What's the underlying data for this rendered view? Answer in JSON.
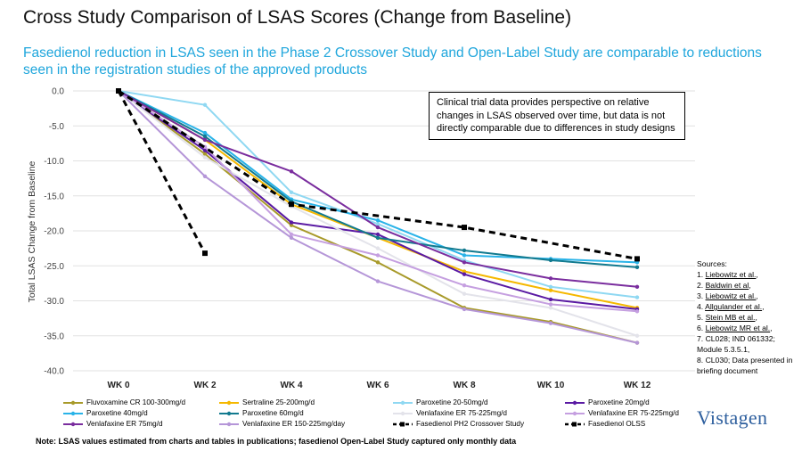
{
  "header": {
    "title": "Cross Study Comparison of LSAS Scores (Change from Baseline)",
    "subtitle": "Fasedienol reduction in LSAS seen in the Phase 2 Crossover Study and Open-Label Study are comparable to reductions seen in the registration studies of the approved products"
  },
  "callout": {
    "text": "Clinical trial data provides perspective on relative changes in LSAS observed over time, but data is not directly comparable due to differences in study designs"
  },
  "sources": {
    "heading": "Sources:",
    "items": [
      {
        "num": "1.",
        "text": "Liebowitz et al.",
        "suffix": ","
      },
      {
        "num": "2.",
        "text": "Baldwin et al",
        "suffix": ","
      },
      {
        "num": "3.",
        "text": "Liebowitz et al.",
        "suffix": ","
      },
      {
        "num": "4.",
        "text": "Allgulander et al.",
        "suffix": ","
      },
      {
        "num": "5.",
        "text": "Stein MB et al.",
        "suffix": ","
      },
      {
        "num": "6.",
        "text": "Liebowitz MR et al.",
        "suffix": ","
      },
      {
        "num": "7.",
        "text": "CL028;  IND 061332; Module 5.3.5.1,",
        "suffix": ""
      },
      {
        "num": "8.",
        "text": "CL030;  Data presented in briefing document",
        "suffix": ""
      }
    ]
  },
  "logo": "Vistagen",
  "note": "Note:  LSAS values estimated from charts and tables in publications; fasedienol Open-Label Study captured only monthly data",
  "chart_data": {
    "type": "line",
    "title": "",
    "xlabel": "",
    "ylabel": "Total LSAS Change from Baseline",
    "categories": [
      "WK 0",
      "WK 2",
      "WK 4",
      "WK 6",
      "WK 8",
      "WK 10",
      "WK 12"
    ],
    "ylim": [
      -40,
      0
    ],
    "yticks": [
      "0.0",
      "-5.0",
      "-10.0",
      "-15.0",
      "-20.0",
      "-25.0",
      "-30.0",
      "-35.0",
      "-40.0"
    ],
    "ytick_values": [
      0,
      -5,
      -10,
      -15,
      -20,
      -25,
      -30,
      -35,
      -40
    ],
    "series": [
      {
        "name": "Fluvoxamine CR 100-300mg/d",
        "color": "#a89a2a",
        "dash": false,
        "values": [
          0,
          -9.0,
          -19.2,
          -24.5,
          -31.0,
          -33.0,
          -36.0
        ]
      },
      {
        "name": "Sertraline 25-200mg/d",
        "color": "#f5b800",
        "dash": false,
        "values": [
          0,
          -7.0,
          -16.2,
          -21.0,
          -25.8,
          -28.5,
          -31.0
        ]
      },
      {
        "name": "Paroxetine 20-50mg/d",
        "color": "#8fd8f2",
        "dash": false,
        "values": [
          0,
          -2.0,
          -14.5,
          -19.0,
          -24.2,
          -28.0,
          -29.5
        ]
      },
      {
        "name": "Paroxetine 20mg/d",
        "color": "#5a1aa3",
        "dash": false,
        "values": [
          0,
          -8.5,
          -18.8,
          -20.5,
          -26.2,
          -29.8,
          -31.2
        ]
      },
      {
        "name": "Paroxetine 40mg/d",
        "color": "#29b3e8",
        "dash": false,
        "values": [
          0,
          -6.0,
          -15.5,
          -18.5,
          -23.5,
          -24.0,
          -24.5
        ]
      },
      {
        "name": "Paroxetine 60mg/d",
        "color": "#127a8f",
        "dash": false,
        "values": [
          0,
          -6.5,
          -15.8,
          -21.0,
          -22.8,
          -24.2,
          -25.2
        ]
      },
      {
        "name": "Venlafaxine ER 75-225mg/d",
        "color": "#e3e3ea",
        "dash": false,
        "values": [
          0,
          -9.5,
          -16.5,
          -22.5,
          -29.0,
          -31.0,
          -35.0
        ]
      },
      {
        "name": "Venlafaxine ER 75-225mg/d",
        "color": "#c59fe0",
        "dash": false,
        "values": [
          0,
          -8.0,
          -20.5,
          -23.5,
          -27.8,
          -30.5,
          -31.5
        ]
      },
      {
        "name": "Venlafaxine ER 75mg/d",
        "color": "#7a2d9e",
        "dash": false,
        "values": [
          0,
          -7.0,
          -11.5,
          -19.5,
          -24.5,
          -26.8,
          -28.0
        ]
      },
      {
        "name": "Venlafaxine ER 150-225mg/day",
        "color": "#b596d8",
        "dash": false,
        "values": [
          0,
          -12.2,
          -21.0,
          -27.2,
          -31.2,
          -33.2,
          -36.0
        ]
      },
      {
        "name": "Fasedienol PH2 Crossover Study",
        "color": "#000000",
        "dash": true,
        "values": [
          0,
          -23.2,
          null,
          null,
          null,
          null,
          null
        ]
      },
      {
        "name": "Fasedienol OLSS",
        "color": "#000000",
        "dash": true,
        "values": [
          0,
          null,
          -16.2,
          null,
          -19.5,
          null,
          -24.0
        ]
      }
    ]
  }
}
